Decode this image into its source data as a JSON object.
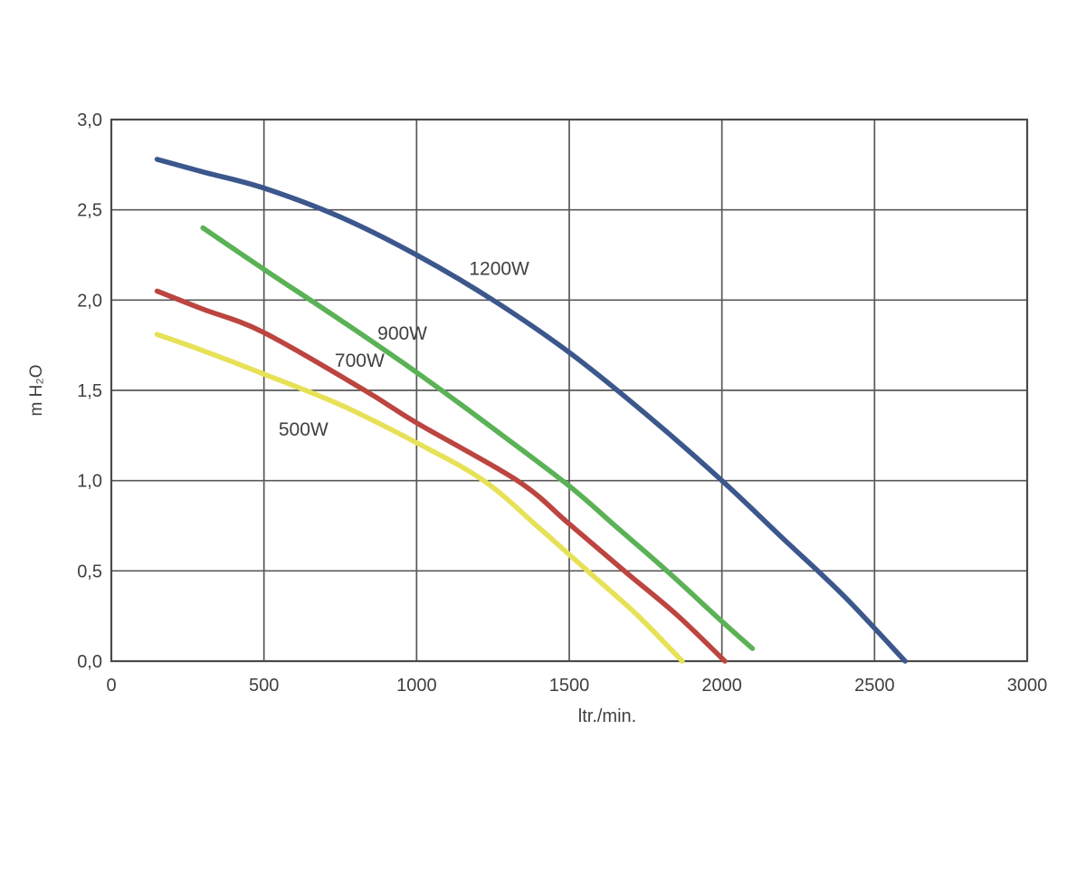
{
  "page": {
    "background_color": "#ffffff"
  },
  "chart_data": {
    "type": "line",
    "title": "",
    "xlabel": "ltr./min.",
    "ylabel": "m H₂O",
    "xlim": [
      0,
      3000
    ],
    "ylim": [
      0,
      3
    ],
    "grid": true,
    "legend_position": "inline-labels",
    "axis_frame_color": "#4a4a4a",
    "gridline_color": "#585858",
    "text_color": "#3f4040",
    "x_ticks": [
      {
        "value": 0,
        "label": "0"
      },
      {
        "value": 500,
        "label": "500"
      },
      {
        "value": 1000,
        "label": "1000"
      },
      {
        "value": 1500,
        "label": "1500"
      },
      {
        "value": 2000,
        "label": "2000"
      },
      {
        "value": 2500,
        "label": "2500"
      },
      {
        "value": 3000,
        "label": "3000"
      }
    ],
    "y_ticks": [
      {
        "value": 0.0,
        "label": "0,0"
      },
      {
        "value": 0.5,
        "label": "0,5"
      },
      {
        "value": 1.0,
        "label": "1,0"
      },
      {
        "value": 1.5,
        "label": "1,5"
      },
      {
        "value": 2.0,
        "label": "2,0"
      },
      {
        "value": 2.5,
        "label": "2,5"
      },
      {
        "value": 3.0,
        "label": "3,0"
      }
    ],
    "series": [
      {
        "name": "500W",
        "color": "#e7e157",
        "label": {
          "text": "500W",
          "x": 548,
          "y": 1.25
        },
        "points": [
          [
            150,
            1.81
          ],
          [
            300,
            1.72
          ],
          [
            500,
            1.59
          ],
          [
            750,
            1.42
          ],
          [
            1000,
            1.21
          ],
          [
            1220,
            1.0
          ],
          [
            1400,
            0.74
          ],
          [
            1560,
            0.5
          ],
          [
            1720,
            0.26
          ],
          [
            1870,
            0.0
          ]
        ]
      },
      {
        "name": "700W",
        "color": "#bc4540",
        "label": {
          "text": "700W",
          "x": 732,
          "y": 1.63
        },
        "points": [
          [
            150,
            2.05
          ],
          [
            300,
            1.95
          ],
          [
            500,
            1.82
          ],
          [
            830,
            1.5
          ],
          [
            1000,
            1.32
          ],
          [
            1330,
            1.0
          ],
          [
            1500,
            0.76
          ],
          [
            1680,
            0.5
          ],
          [
            1850,
            0.26
          ],
          [
            2010,
            0.0
          ]
        ]
      },
      {
        "name": "900W",
        "color": "#5bb256",
        "label": {
          "text": "900W",
          "x": 872,
          "y": 1.78
        },
        "points": [
          [
            300,
            2.4
          ],
          [
            500,
            2.17
          ],
          [
            750,
            1.89
          ],
          [
            1000,
            1.6
          ],
          [
            1250,
            1.29
          ],
          [
            1500,
            0.97
          ],
          [
            1650,
            0.75
          ],
          [
            1820,
            0.5
          ],
          [
            2000,
            0.22
          ],
          [
            2100,
            0.07
          ]
        ]
      },
      {
        "name": "1200W",
        "color": "#3c578c",
        "label": {
          "text": "1200W",
          "x": 1172,
          "y": 2.14
        },
        "points": [
          [
            150,
            2.78
          ],
          [
            300,
            2.71
          ],
          [
            500,
            2.62
          ],
          [
            750,
            2.46
          ],
          [
            1000,
            2.25
          ],
          [
            1250,
            2.0
          ],
          [
            1500,
            1.71
          ],
          [
            1750,
            1.37
          ],
          [
            2000,
            1.0
          ],
          [
            2200,
            0.68
          ],
          [
            2400,
            0.36
          ],
          [
            2600,
            0.0
          ]
        ]
      }
    ]
  }
}
